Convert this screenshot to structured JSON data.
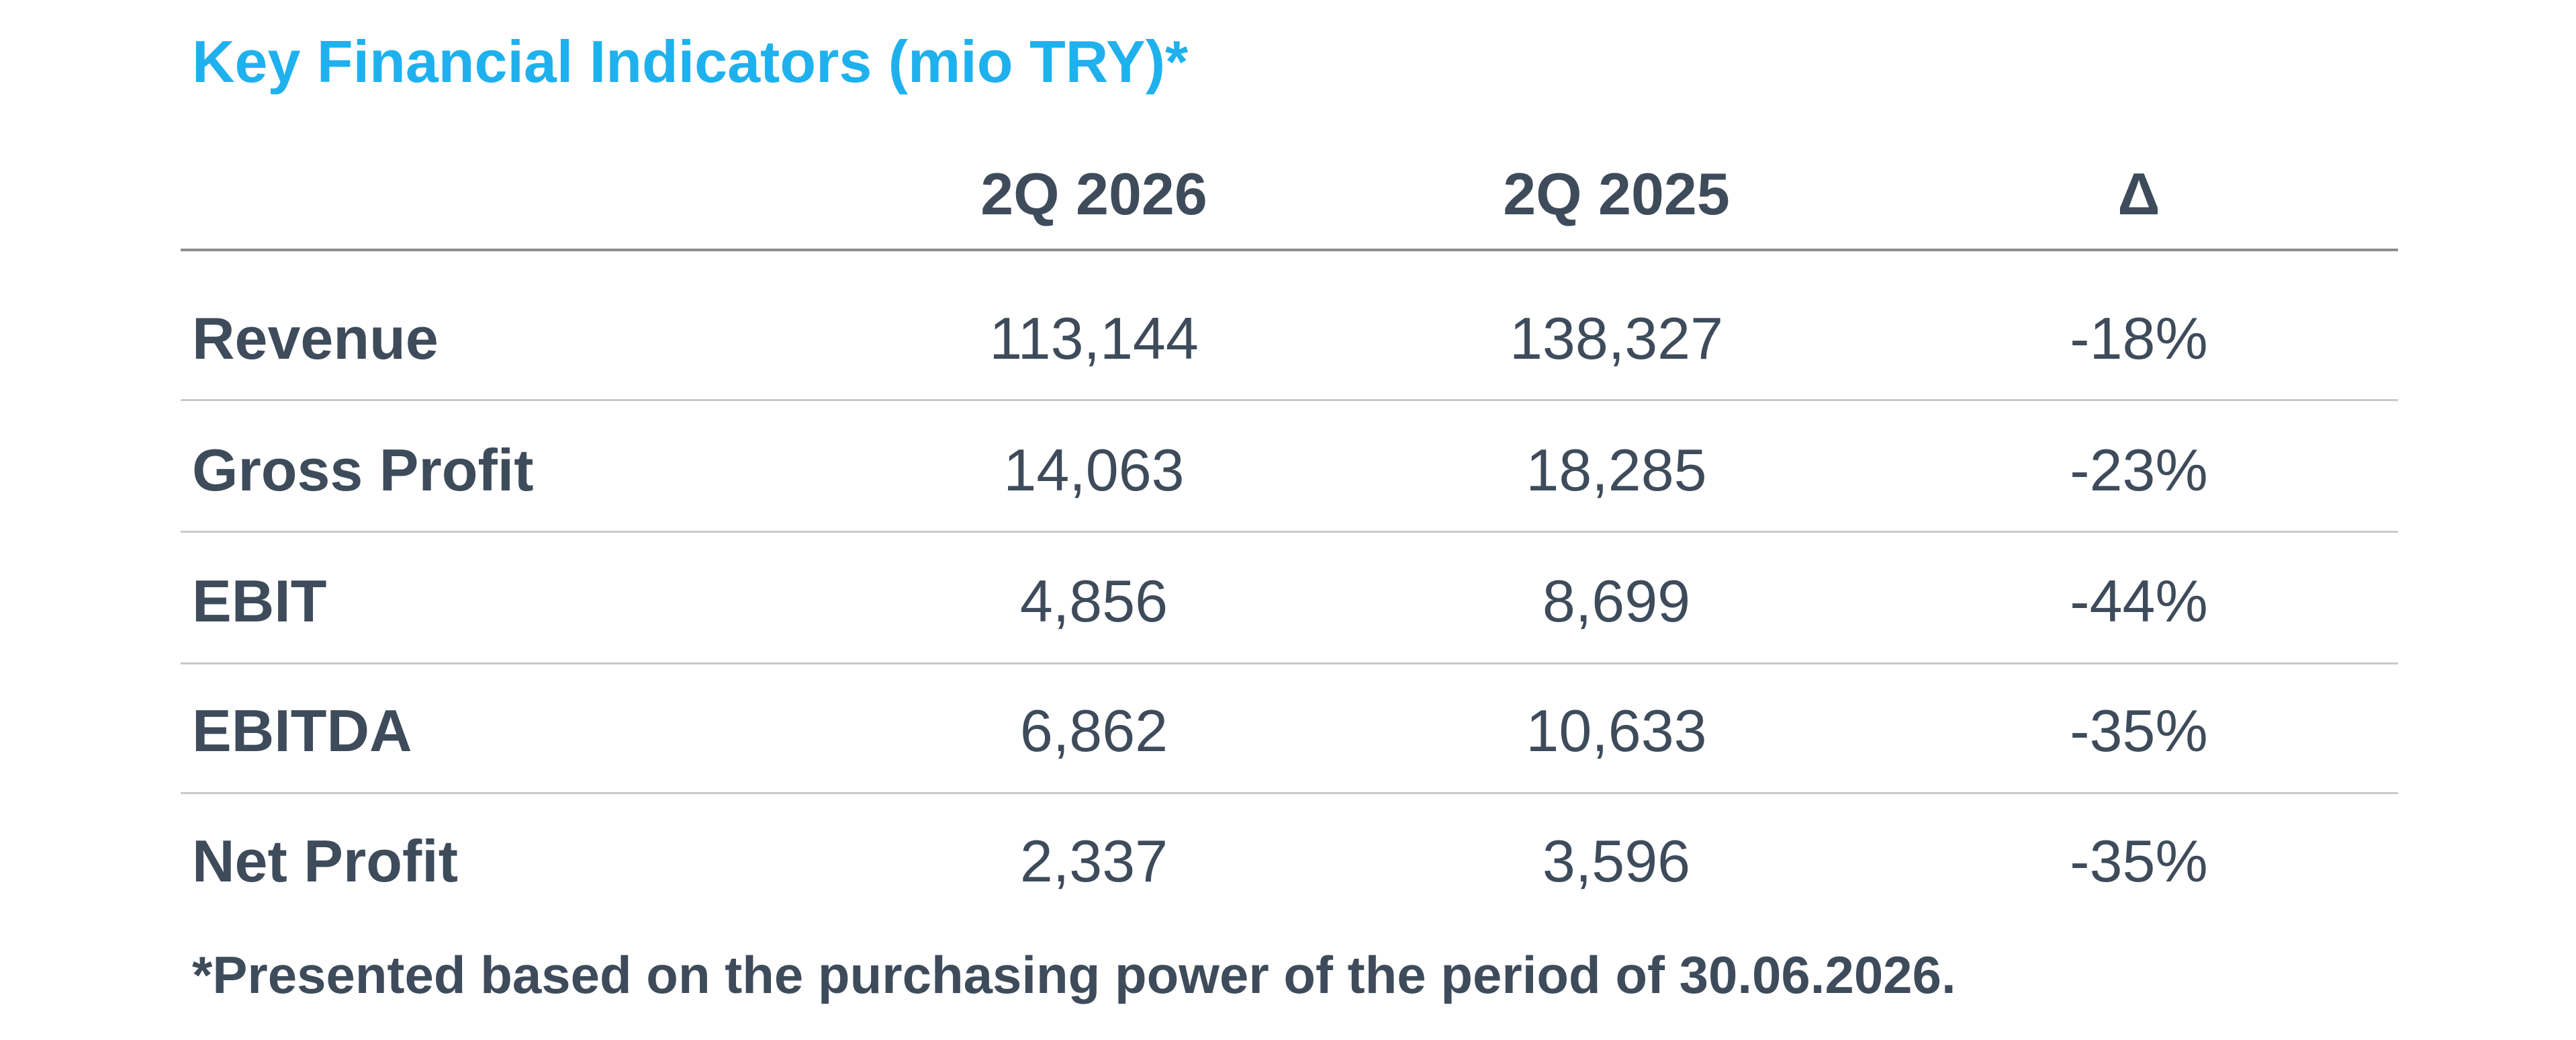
{
  "table": {
    "title": "Key Financial Indicators (mio TRY)*",
    "columns": [
      "",
      "2Q 2026",
      "2Q 2025",
      "Δ"
    ],
    "rows": [
      [
        "Revenue",
        "113,144",
        "138,327",
        "-18%"
      ],
      [
        "Gross Profit",
        "14,063",
        "18,285",
        "-23%"
      ],
      [
        "EBIT",
        "4,856",
        "8,699",
        "-44%"
      ],
      [
        "EBITDA",
        "6,862",
        "10,633",
        "-35%"
      ],
      [
        "Net Profit",
        "2,337",
        "3,596",
        "-35%"
      ]
    ],
    "footnote": "*Presented based on the purchasing power of the period of 30.06.2026."
  }
}
